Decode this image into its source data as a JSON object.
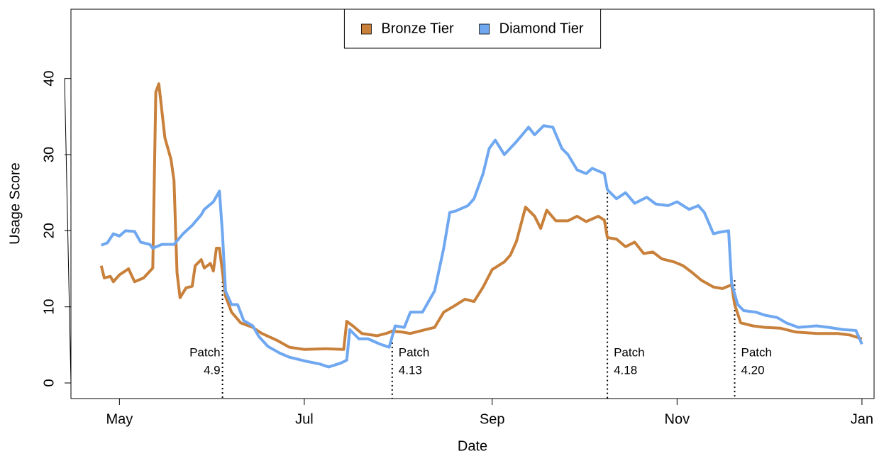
{
  "chart_data": {
    "type": "line",
    "x_label": "Date",
    "y_label": "Usage Score",
    "xlim": [
      -16,
      249
    ],
    "ylim": [
      -2.05,
      49.1
    ],
    "xticks": [
      {
        "value": 0,
        "label": "May"
      },
      {
        "value": 61,
        "label": "Jul"
      },
      {
        "value": 123,
        "label": "Sep"
      },
      {
        "value": 184,
        "label": "Nov"
      },
      {
        "value": 245,
        "label": "Jan"
      }
    ],
    "yticks": [
      0,
      10,
      20,
      30,
      40
    ],
    "legend": "top",
    "series": [
      {
        "name": "Bronze Tier",
        "color": "#c8803a",
        "x": [
          -6,
          -5,
          -3,
          -2,
          0,
          3,
          5,
          8,
          11,
          12,
          13,
          15,
          17,
          18,
          19,
          20,
          22,
          24,
          25,
          27,
          28,
          30,
          31,
          32,
          33,
          35,
          37,
          40,
          44,
          47,
          52,
          56,
          61,
          68,
          74,
          75,
          77,
          80,
          85,
          88,
          90,
          93,
          96,
          101,
          104,
          107,
          110,
          114,
          117,
          120,
          123,
          127,
          129,
          131,
          134,
          137,
          139,
          141,
          144,
          148,
          151,
          154,
          158,
          160,
          161,
          164,
          167,
          170,
          173,
          176,
          179,
          183,
          186,
          189,
          192,
          196,
          199,
          202,
          203,
          205,
          209,
          213,
          218,
          223,
          230,
          237,
          241,
          245
        ],
        "values": [
          15.4,
          13.8,
          14,
          13.3,
          14.2,
          15,
          13.3,
          13.8,
          15.1,
          38.2,
          39.3,
          32.2,
          29.4,
          26.6,
          14.5,
          11.2,
          12.5,
          12.7,
          15.4,
          16.2,
          15.1,
          15.7,
          14.7,
          17.7,
          17.7,
          11.4,
          9.3,
          7.9,
          7.3,
          6.5,
          5.6,
          4.7,
          4.4,
          4.5,
          4.4,
          8.1,
          7.5,
          6.5,
          6.2,
          6.5,
          6.8,
          6.7,
          6.5,
          7,
          7.3,
          9.3,
          10,
          11,
          10.7,
          12.6,
          14.9,
          15.9,
          16.8,
          18.6,
          23.1,
          21.9,
          20.3,
          22.7,
          21.3,
          21.3,
          21.9,
          21.2,
          21.9,
          21.4,
          19.1,
          18.9,
          17.9,
          18.5,
          17,
          17.2,
          16.3,
          15.9,
          15.4,
          14.5,
          13.5,
          12.6,
          12.4,
          12.9,
          10.3,
          7.9,
          7.5,
          7.3,
          7.2,
          6.7,
          6.5,
          6.5,
          6.3,
          5.8
        ]
      },
      {
        "name": "Diamond Tier",
        "color": "#6fa8f0",
        "x": [
          -6,
          -4,
          -2,
          0,
          2,
          5,
          7,
          10,
          11,
          14,
          18,
          21,
          24,
          27,
          28,
          31,
          33,
          34,
          35,
          37,
          39,
          41,
          44,
          46,
          49,
          53,
          56,
          61,
          66,
          69,
          73,
          75,
          76,
          79,
          82,
          86,
          89,
          91,
          94,
          96,
          100,
          102,
          104,
          107,
          109,
          111,
          115,
          117,
          120,
          122,
          124,
          127,
          131,
          135,
          137,
          140,
          143,
          146,
          148,
          151,
          154,
          156,
          160,
          161,
          164,
          167,
          170,
          174,
          177,
          181,
          184,
          188,
          191,
          193,
          196,
          198,
          201,
          202,
          204,
          206,
          210,
          213,
          217,
          220,
          224,
          230,
          234,
          239,
          243,
          245
        ],
        "values": [
          18.1,
          18.4,
          19.6,
          19.3,
          20,
          19.9,
          18.5,
          18.2,
          17.7,
          18.2,
          18.2,
          19.6,
          20.7,
          22.1,
          22.8,
          23.8,
          25.2,
          19.6,
          12.1,
          10.3,
          10.3,
          8.2,
          7.5,
          6.1,
          4.8,
          3.9,
          3.4,
          2.9,
          2.5,
          2.1,
          2.6,
          3,
          7,
          5.8,
          5.8,
          5.1,
          4.7,
          7.5,
          7.3,
          9.3,
          9.3,
          10.7,
          12.1,
          17.7,
          22.4,
          22.6,
          23.3,
          24.2,
          27.5,
          30.8,
          31.9,
          30,
          31.7,
          33.6,
          32.6,
          33.8,
          33.6,
          30.8,
          30,
          28,
          27.5,
          28.2,
          27.5,
          25.4,
          24.2,
          25,
          23.6,
          24.4,
          23.5,
          23.3,
          23.8,
          22.8,
          23.3,
          22.4,
          19.6,
          19.8,
          20,
          13.1,
          10.3,
          9.5,
          9.3,
          8.9,
          8.6,
          7.9,
          7.3,
          7.5,
          7.3,
          7,
          6.9,
          5.1
        ]
      }
    ],
    "annotations": [
      {
        "label": [
          "Patch",
          "4.9"
        ],
        "x": 34,
        "y": 15,
        "side": "left"
      },
      {
        "label": [
          "Patch",
          "4.13"
        ],
        "x": 90,
        "y": 7,
        "side": "right"
      },
      {
        "label": [
          "Patch",
          "4.18"
        ],
        "x": 161,
        "y": 25,
        "side": "right"
      },
      {
        "label": [
          "Patch",
          "4.20"
        ],
        "x": 203,
        "y": 13.5,
        "side": "right"
      }
    ]
  }
}
